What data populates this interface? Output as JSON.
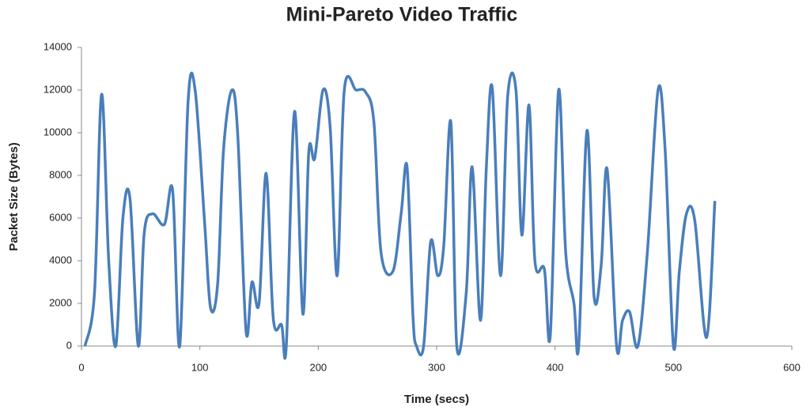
{
  "chart_data": {
    "type": "line",
    "title": "Mini-Pareto Video Traffic",
    "x_label": "Time (secs)",
    "y_label": "Packet Size (Bytes)",
    "xlim": [
      0,
      600
    ],
    "xticks": [
      0,
      100,
      200,
      300,
      400,
      500,
      600
    ],
    "ylim": [
      0,
      14000
    ],
    "yticks": [
      0,
      2000,
      4000,
      6000,
      8000,
      10000,
      12000,
      14000
    ],
    "grid": false,
    "smooth": true,
    "series": [
      {
        "name": "Packet Size",
        "color": "#4a7ebb",
        "x": [
          3,
          11,
          17,
          23,
          29,
          35,
          41,
          48,
          53,
          60,
          70,
          77,
          83,
          90,
          96,
          104,
          109,
          115,
          120,
          127,
          132,
          139,
          144,
          150,
          156,
          162,
          169,
          173,
          180,
          187,
          192,
          197,
          204,
          210,
          216,
          222,
          232,
          240,
          247,
          253,
          263,
          270,
          275,
          280,
          283,
          289,
          295,
          301,
          306,
          312,
          317,
          325,
          330,
          337,
          342,
          347,
          354,
          360,
          367,
          372,
          378,
          383,
          391,
          396,
          403,
          409,
          416,
          420,
          427,
          433,
          439,
          444,
          452,
          457,
          463,
          470,
          478,
          487,
          493,
          500,
          505,
          511,
          518,
          528,
          535
        ],
        "values": [
          0,
          2500,
          11800,
          4000,
          0,
          6000,
          6900,
          0,
          5300,
          6200,
          5700,
          7300,
          0,
          11400,
          12000,
          5800,
          1800,
          2900,
          9200,
          12000,
          9900,
          700,
          3000,
          2000,
          8100,
          1300,
          1000,
          0,
          11000,
          1500,
          9100,
          8800,
          12000,
          10300,
          3300,
          12000,
          12000,
          11900,
          10500,
          4400,
          3500,
          6200,
          8400,
          1400,
          0,
          0,
          4900,
          3300,
          4700,
          10500,
          0,
          2500,
          8400,
          1200,
          8400,
          12100,
          3300,
          11700,
          12000,
          5200,
          11300,
          4000,
          3600,
          500,
          12000,
          4400,
          2000,
          0,
          10100,
          2300,
          3800,
          8300,
          0,
          1200,
          1600,
          0,
          4400,
          12000,
          9200,
          0,
          3500,
          6200,
          5900,
          400,
          6800
        ]
      }
    ]
  }
}
